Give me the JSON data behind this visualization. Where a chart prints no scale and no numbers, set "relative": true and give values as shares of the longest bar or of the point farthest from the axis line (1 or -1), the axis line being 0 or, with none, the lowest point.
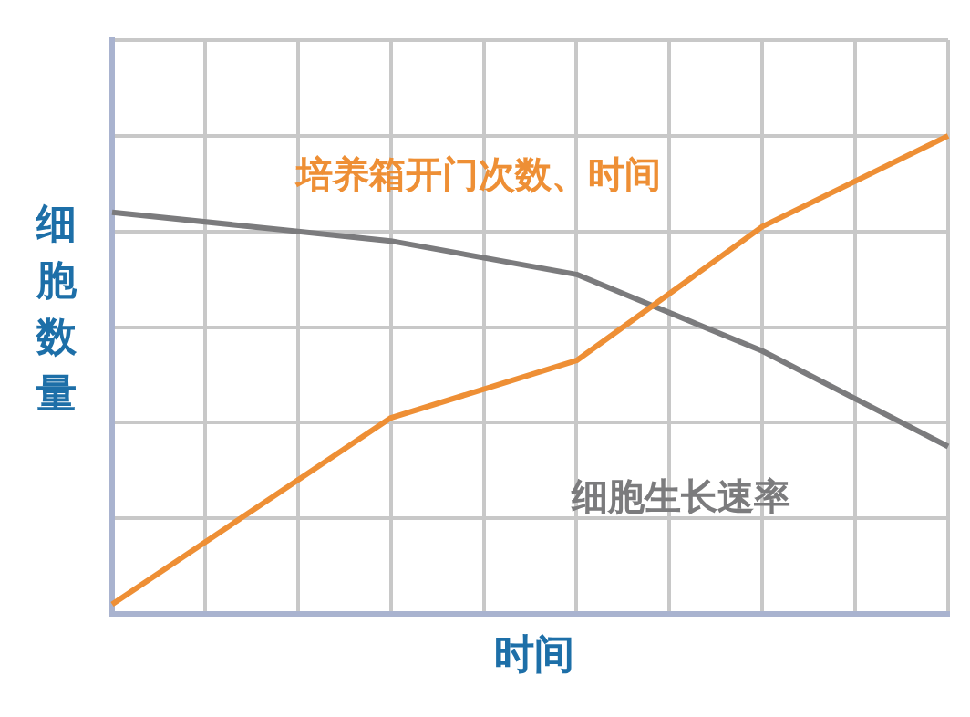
{
  "chart_data": {
    "type": "line",
    "xlabel": "时间",
    "ylabel": "细胞数量",
    "relative": true,
    "grid": true,
    "legend": false,
    "marker": "none",
    "line_style": "solid",
    "categories": [
      null,
      null,
      null,
      null,
      null,
      null,
      null,
      null,
      null,
      null
    ],
    "series": [
      {
        "name": "培养箱开门次数、时间",
        "color": "#ee8f35",
        "values": [
          0.02,
          null,
          null,
          0.41,
          null,
          0.53,
          null,
          0.81,
          null,
          1
        ]
      },
      {
        "name": "细胞生长速率",
        "color": "#7b7b7d",
        "values": [
          0.84,
          null,
          null,
          0.78,
          null,
          0.71,
          null,
          0.55,
          null,
          0.35
        ]
      }
    ]
  }
}
